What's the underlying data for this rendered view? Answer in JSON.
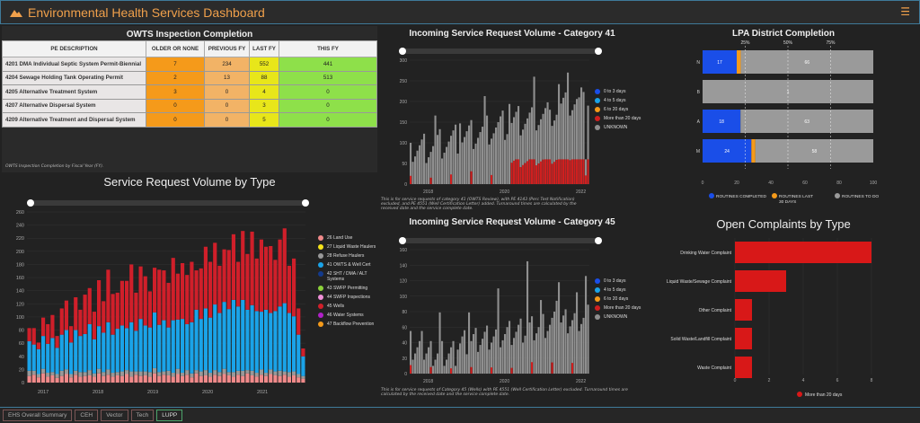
{
  "header": {
    "title": "Environmental Health Services Dashboard",
    "menu_icon": "hamburger-icon",
    "accent": "#f0a04b"
  },
  "owts": {
    "title": "OWTS Inspection Completion",
    "columns": [
      "PE DESCRIPTION",
      "OLDER OR NONE",
      "PREVIOUS FY",
      "LAST FY",
      "THIS FY"
    ],
    "rows": [
      {
        "desc": "4201 DMA Individual Septic System Permit-Biennial",
        "older": "7",
        "prev": "234",
        "last": "552",
        "this": "441"
      },
      {
        "desc": "4204 Sewage Holding Tank Operating Permit",
        "older": "2",
        "prev": "13",
        "last": "88",
        "this": "513"
      },
      {
        "desc": "4205 Alternative Treatment System",
        "older": "3",
        "prev": "0",
        "last": "4",
        "this": "0"
      },
      {
        "desc": "4207 Alternative Dispersal System",
        "older": "0",
        "prev": "0",
        "last": "3",
        "this": "0"
      },
      {
        "desc": "4209 Alternative Treatment and Dispersal System",
        "older": "0",
        "prev": "0",
        "last": "5",
        "this": "0"
      }
    ],
    "footnote": "OWTS Inspection Completion by Fiscal Year (FY)."
  },
  "srv_type": {
    "title": "Service Request Volume by Type",
    "legend": [
      {
        "label": "26 Land Use",
        "color": "#f08a8a"
      },
      {
        "label": "27 Liquid Waste Haulers",
        "color": "#f5e31a"
      },
      {
        "label": "28 Refuse Haulers",
        "color": "#999999"
      },
      {
        "label": "41 OWTS & Well Cert",
        "color": "#1aa3e8"
      },
      {
        "label": "42 SHT / DMA / ALT Systems",
        "color": "#123a8c"
      },
      {
        "label": "43 SWFP Permitting",
        "color": "#8bd13a"
      },
      {
        "label": "44 SWFP Inspections",
        "color": "#f090d8"
      },
      {
        "label": "45 Wells",
        "color": "#d01f2a"
      },
      {
        "label": "46 Water Systems",
        "color": "#b020c8"
      },
      {
        "label": "47 Backflow Prevention",
        "color": "#f59a1a"
      }
    ]
  },
  "cat41": {
    "title": "Incoming Service Request Volume - Category 41",
    "footnote": "This is for service requests of category 41 (OWTS Review), with PE 4143 (Perc Test Notification) excluded, and PE 4551 (Well Certification Letter) added. Turnaround times are calculated by the received date and the service complete date."
  },
  "cat45": {
    "title": "Incoming Service Request Volume - Category 45",
    "footnote": "This is for service requests of Category 45 (Wells) with PE 4551 (Well Certification Letter) excluded. Turnaround times are calculated by the received date and the service complete date."
  },
  "turn_legend": [
    {
      "label": "0 to 3 days",
      "color": "#1a4ee8"
    },
    {
      "label": "4 to 5 days",
      "color": "#1aa3e8"
    },
    {
      "label": "6 to 20 days",
      "color": "#f59a1a"
    },
    {
      "label": "More than 20 days",
      "color": "#d01f1f"
    },
    {
      "label": "UNKNOWN",
      "color": "#8f8f8f"
    }
  ],
  "lpa": {
    "title": "LPA District Completion",
    "top_ticks": [
      "25%",
      "50%",
      "75%"
    ],
    "rows": [
      {
        "suffix": "N",
        "completed": 17,
        "last30": 2,
        "todo": 66
      },
      {
        "suffix": "B",
        "completed": 0,
        "last30": 0,
        "todo": 1
      },
      {
        "suffix": "A",
        "completed": 18,
        "last30": 0,
        "todo": 63
      },
      {
        "suffix": "M",
        "completed": 24,
        "last30": 2,
        "todo": 58
      }
    ],
    "axis": [
      "0",
      "20",
      "40",
      "60",
      "80",
      "100"
    ],
    "legend": [
      {
        "label": "ROUTINES COMPLETED",
        "color": "#1a4ee8"
      },
      {
        "label": "ROUTINES LAST 30 DAYS",
        "color": "#f59a1a"
      },
      {
        "label": "ROUTINES TO DO",
        "color": "#9a9a9a"
      }
    ]
  },
  "complaints": {
    "title": "Open Complaints by Type",
    "legend": "More than 20 days",
    "axis": [
      "0",
      "2",
      "4",
      "6",
      "8"
    ]
  },
  "tabs": [
    {
      "label": "EHS Overall Summary",
      "active": false
    },
    {
      "label": "CEH",
      "active": false
    },
    {
      "label": "Vector",
      "active": false
    },
    {
      "label": "Tech",
      "active": false
    },
    {
      "label": "LUPP",
      "active": true
    }
  ],
  "chart_data": [
    {
      "type": "bar",
      "title": "Service Request Volume by Type",
      "x": [
        "2017",
        "2018",
        "2019",
        "2020",
        "2021"
      ],
      "ylim": [
        0,
        260
      ],
      "yticks": [
        0,
        20,
        40,
        60,
        80,
        100,
        120,
        140,
        160,
        180,
        200,
        220,
        240,
        260
      ],
      "stacked": true,
      "series_order": [
        "26 Land Use",
        "28 Refuse Haulers",
        "41 OWTS & Well Cert",
        "45 Wells"
      ],
      "values": [
        [
          10,
          8,
          45,
          20
        ],
        [
          12,
          6,
          40,
          25
        ],
        [
          8,
          5,
          38,
          10
        ],
        [
          14,
          7,
          50,
          28
        ],
        [
          9,
          6,
          44,
          30
        ],
        [
          11,
          5,
          52,
          35
        ],
        [
          7,
          6,
          40,
          18
        ],
        [
          10,
          8,
          55,
          40
        ],
        [
          13,
          7,
          60,
          45
        ],
        [
          8,
          5,
          48,
          25
        ],
        [
          12,
          6,
          62,
          50
        ],
        [
          9,
          7,
          55,
          40
        ],
        [
          10,
          6,
          58,
          60
        ],
        [
          11,
          8,
          70,
          55
        ],
        [
          9,
          5,
          52,
          42
        ],
        [
          14,
          7,
          65,
          70
        ],
        [
          10,
          6,
          60,
          48
        ],
        [
          12,
          8,
          72,
          80
        ],
        [
          9,
          6,
          58,
          62
        ],
        [
          11,
          5,
          66,
          55
        ],
        [
          10,
          7,
          70,
          68
        ],
        [
          13,
          6,
          64,
          72
        ],
        [
          9,
          8,
          75,
          88
        ],
        [
          12,
          5,
          62,
          58
        ],
        [
          10,
          7,
          80,
          80
        ],
        [
          11,
          6,
          70,
          75
        ],
        [
          9,
          7,
          68,
          55
        ],
        [
          14,
          8,
          85,
          68
        ],
        [
          10,
          6,
          72,
          84
        ],
        [
          12,
          5,
          78,
          76
        ],
        [
          11,
          7,
          66,
          68
        ],
        [
          9,
          6,
          80,
          95
        ],
        [
          13,
          8,
          75,
          70
        ],
        [
          10,
          5,
          82,
          85
        ],
        [
          12,
          7,
          70,
          75
        ],
        [
          8,
          6,
          78,
          92
        ],
        [
          14,
          5,
          92,
          60
        ],
        [
          10,
          7,
          80,
          77
        ],
        [
          11,
          8,
          94,
          94
        ],
        [
          9,
          6,
          84,
          85
        ],
        [
          12,
          7,
          100,
          94
        ],
        [
          10,
          6,
          90,
          72
        ],
        [
          13,
          8,
          102,
          80
        ],
        [
          11,
          5,
          96,
          90
        ],
        [
          9,
          7,
          110,
          100
        ],
        [
          12,
          6,
          98,
          68
        ],
        [
          10,
          8,
          108,
          105
        ],
        [
          14,
          5,
          92,
          85
        ],
        [
          11,
          7,
          100,
          112
        ],
        [
          9,
          6,
          94,
          80
        ],
        [
          12,
          8,
          88,
          110
        ],
        [
          10,
          5,
          96,
          96
        ],
        [
          13,
          7,
          86,
          102
        ],
        [
          11,
          6,
          92,
          78
        ],
        [
          10,
          8,
          98,
          102
        ],
        [
          12,
          5,
          104,
          114
        ],
        [
          9,
          7,
          90,
          72
        ],
        [
          11,
          6,
          84,
          88
        ],
        [
          8,
          5,
          60,
          40
        ],
        [
          6,
          4,
          30,
          12
        ]
      ]
    },
    {
      "type": "bar",
      "title": "Incoming Service Request Volume - Category 41",
      "x": [
        "2018",
        "2020",
        "2022"
      ],
      "ylim": [
        0,
        300
      ],
      "yticks": [
        0,
        50,
        100,
        150,
        200,
        250,
        300
      ]
    },
    {
      "type": "bar",
      "title": "LPA District Completion",
      "categories": [
        "N",
        "B",
        "A",
        "M"
      ],
      "series": [
        {
          "name": "ROUTINES COMPLETED",
          "values": [
            17,
            0,
            18,
            24
          ]
        },
        {
          "name": "ROUTINES LAST 30 DAYS",
          "values": [
            2,
            0,
            0,
            2
          ]
        },
        {
          "name": "ROUTINES TO DO",
          "values": [
            66,
            1,
            63,
            58
          ]
        }
      ],
      "xlim": [
        0,
        100
      ]
    },
    {
      "type": "bar",
      "title": "Incoming Service Request Volume - Category 45",
      "x": [
        "2018",
        "2020",
        "2022"
      ],
      "ylim": [
        0,
        160
      ],
      "yticks": [
        0,
        20,
        40,
        60,
        80,
        100,
        120,
        140,
        160
      ]
    },
    {
      "type": "bar",
      "title": "Open Complaints by Type",
      "categories": [
        "Drinking Water Complaint",
        "Liquid Waste/Sewage Complaint",
        "Other Complaint",
        "Solid Waste/Landfill Complaint",
        "Waste Complaint"
      ],
      "series": [
        {
          "name": "More than 20 days",
          "values": [
            8,
            3,
            1,
            1,
            1
          ]
        }
      ],
      "xlim": [
        0,
        8
      ]
    }
  ]
}
